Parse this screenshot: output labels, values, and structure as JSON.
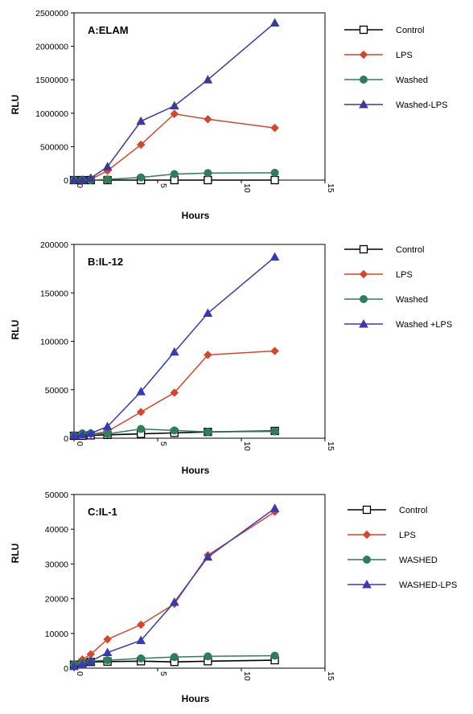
{
  "chart_data": [
    {
      "type": "line",
      "title": "A:ELAM",
      "xlabel": "Hours",
      "ylabel": "RLU",
      "xlim": [
        0,
        15
      ],
      "ylim": [
        0,
        2500000
      ],
      "xticks": [
        "0",
        "5",
        "10",
        "15"
      ],
      "yticks": [
        "0",
        "500000",
        "1000000",
        "1500000",
        "2000000",
        "2500000"
      ],
      "legend_position": "right",
      "series": [
        {
          "name": "Control",
          "color": "#000000",
          "marker": "square-open",
          "x": [
            0,
            0.5,
            1,
            2,
            4,
            6,
            8,
            12
          ],
          "y": [
            0,
            0,
            0,
            0,
            0,
            0,
            0,
            0
          ]
        },
        {
          "name": "LPS",
          "color": "#d9452b",
          "marker": "diamond",
          "x": [
            0,
            0.5,
            1,
            2,
            4,
            6,
            8,
            12
          ],
          "y": [
            0,
            0,
            10000,
            140000,
            530000,
            990000,
            910000,
            780000
          ]
        },
        {
          "name": "Washed",
          "color": "#2e7d5b",
          "marker": "circle",
          "x": [
            0,
            0.5,
            1,
            2,
            4,
            6,
            8,
            12
          ],
          "y": [
            0,
            0,
            0,
            10000,
            40000,
            90000,
            105000,
            110000
          ]
        },
        {
          "name": "Washed-LPS",
          "color": "#3a3a9a",
          "marker": "triangle",
          "x": [
            0,
            0.5,
            1,
            2,
            4,
            6,
            8,
            12
          ],
          "y": [
            0,
            0,
            30000,
            200000,
            880000,
            1110000,
            1500000,
            2350000
          ]
        }
      ]
    },
    {
      "type": "line",
      "title": "B:IL-12",
      "xlabel": "Hours",
      "ylabel": "RLU",
      "xlim": [
        0,
        15
      ],
      "ylim": [
        0,
        200000
      ],
      "xticks": [
        "0",
        "5",
        "10",
        "15"
      ],
      "yticks": [
        "0",
        "50000",
        "100000",
        "150000",
        "200000"
      ],
      "legend_position": "right",
      "series": [
        {
          "name": "Control",
          "color": "#000000",
          "marker": "square-open",
          "x": [
            0,
            0.5,
            1,
            2,
            4,
            6,
            8,
            12
          ],
          "y": [
            2500,
            2500,
            3000,
            3500,
            4500,
            5500,
            6500,
            7500
          ]
        },
        {
          "name": "LPS",
          "color": "#d9452b",
          "marker": "diamond",
          "x": [
            0,
            0.5,
            1,
            2,
            4,
            6,
            8,
            12
          ],
          "y": [
            3000,
            3500,
            4000,
            7000,
            27000,
            47000,
            86000,
            90000
          ]
        },
        {
          "name": "Washed",
          "color": "#2e7d5b",
          "marker": "circle",
          "x": [
            0,
            0.5,
            1,
            2,
            4,
            6,
            8,
            12
          ],
          "y": [
            3000,
            5000,
            5000,
            4500,
            9500,
            8000,
            6500,
            7000
          ]
        },
        {
          "name": "Washed +LPS",
          "color": "#3a3ab0",
          "marker": "triangle",
          "x": [
            0,
            0.5,
            1,
            2,
            4,
            6,
            8,
            12
          ],
          "y": [
            3000,
            3500,
            5000,
            12000,
            48000,
            89000,
            129000,
            187000
          ]
        }
      ]
    },
    {
      "type": "line",
      "title": "C:IL-1",
      "xlabel": "Hours",
      "ylabel": "RLU",
      "xlim": [
        0,
        15
      ],
      "ylim": [
        0,
        50000
      ],
      "xticks": [
        "0",
        "5",
        "10",
        "15"
      ],
      "yticks": [
        "0",
        "10000",
        "20000",
        "30000",
        "40000",
        "50000"
      ],
      "legend_position": "right",
      "series": [
        {
          "name": "Control",
          "color": "#000000",
          "marker": "square-open",
          "x": [
            0,
            0.5,
            1,
            2,
            4,
            6,
            8,
            12
          ],
          "y": [
            1000,
            1500,
            1800,
            1900,
            2000,
            1800,
            2000,
            2300
          ]
        },
        {
          "name": "LPS",
          "color": "#d9452b",
          "marker": "diamond",
          "x": [
            0,
            0.5,
            1,
            2,
            4,
            6,
            8,
            12
          ],
          "y": [
            1000,
            2500,
            4000,
            8300,
            12500,
            18500,
            32500,
            45000
          ]
        },
        {
          "name": "WASHED",
          "color": "#2e7d5b",
          "marker": "circle",
          "x": [
            0,
            0.5,
            1,
            2,
            4,
            6,
            8,
            12
          ],
          "y": [
            1000,
            1500,
            2000,
            2300,
            2800,
            3200,
            3400,
            3600
          ]
        },
        {
          "name": "WASHED-LPS",
          "color": "#3a3ab0",
          "marker": "triangle",
          "x": [
            0,
            0.5,
            1,
            2,
            4,
            6,
            8,
            12
          ],
          "y": [
            500,
            1000,
            2000,
            4500,
            8000,
            19000,
            32000,
            46000
          ]
        }
      ]
    }
  ]
}
